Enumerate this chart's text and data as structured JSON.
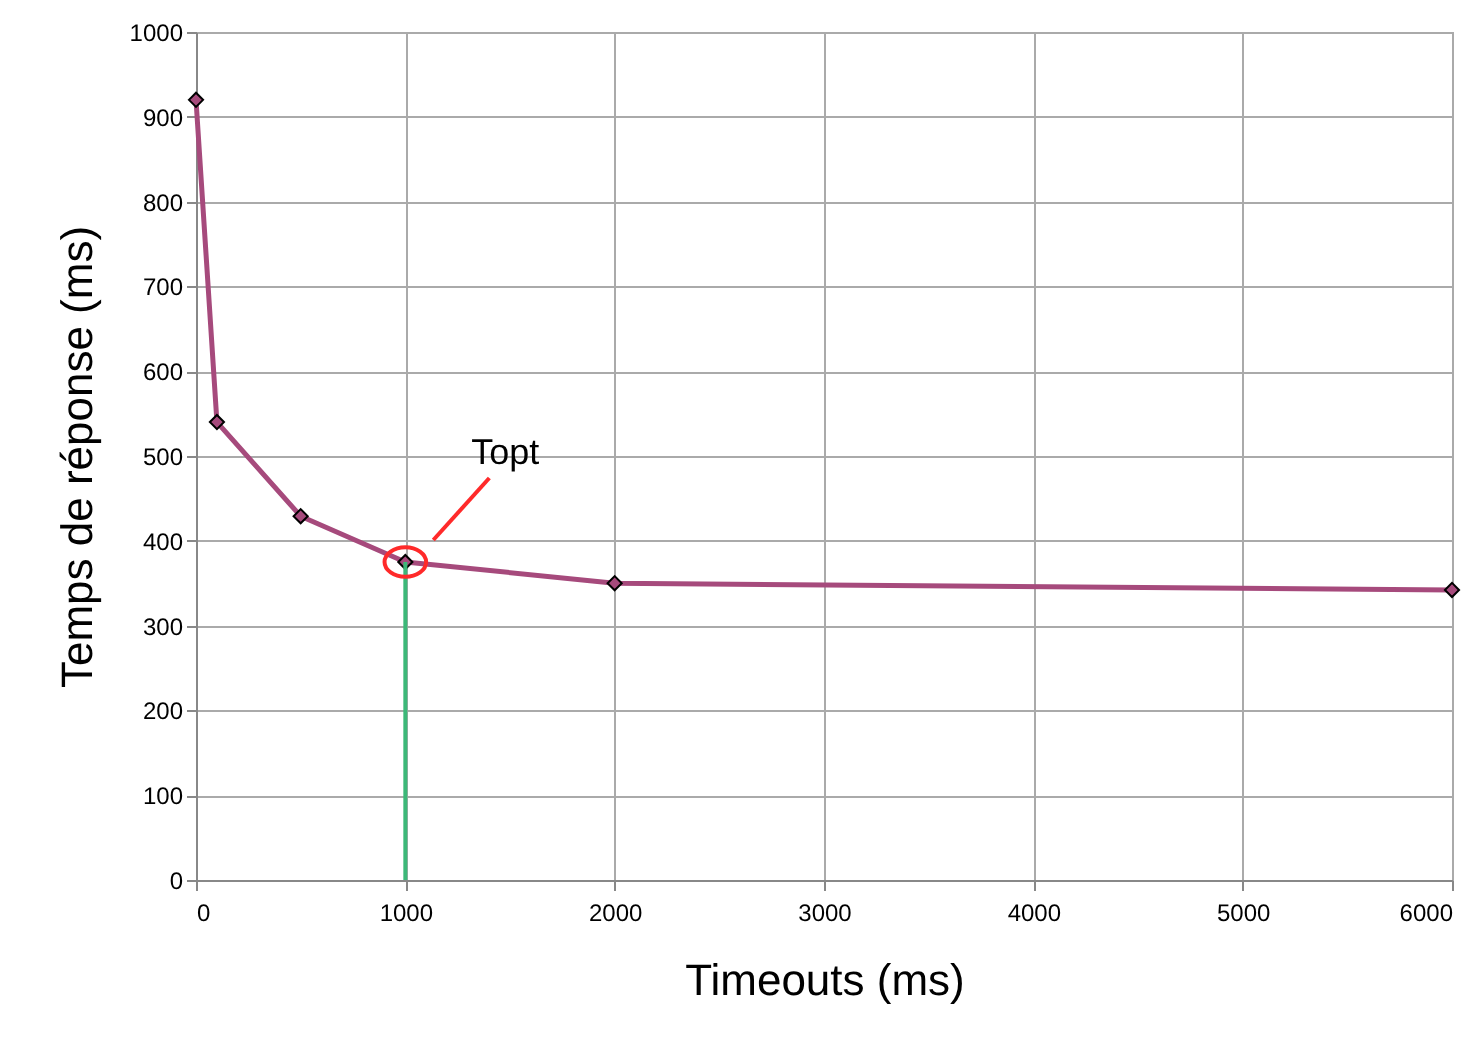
{
  "chart_data": {
    "type": "line",
    "xlabel": "Timeouts (ms)",
    "ylabel": "Temps de réponse (ms)",
    "x": [
      0,
      100,
      500,
      1000,
      2000,
      6000
    ],
    "series": [
      {
        "color": "#a64a7c",
        "values": [
          920,
          540,
          429,
          375,
          350,
          342
        ]
      }
    ],
    "xlim": [
      0,
      6000
    ],
    "xticks": [
      0,
      1000,
      2000,
      3000,
      4000,
      5000,
      6000
    ],
    "ylim": [
      0,
      1000
    ],
    "yticks": [
      0,
      100,
      200,
      300,
      400,
      500,
      600,
      700,
      800,
      900,
      1000
    ],
    "grid": true,
    "marker": "diamond",
    "line_style": "solid",
    "ref_lines": [
      {
        "axis": "x",
        "value": 1000,
        "color": "#3cb878"
      }
    ],
    "annotations": [
      "Topt"
    ]
  }
}
